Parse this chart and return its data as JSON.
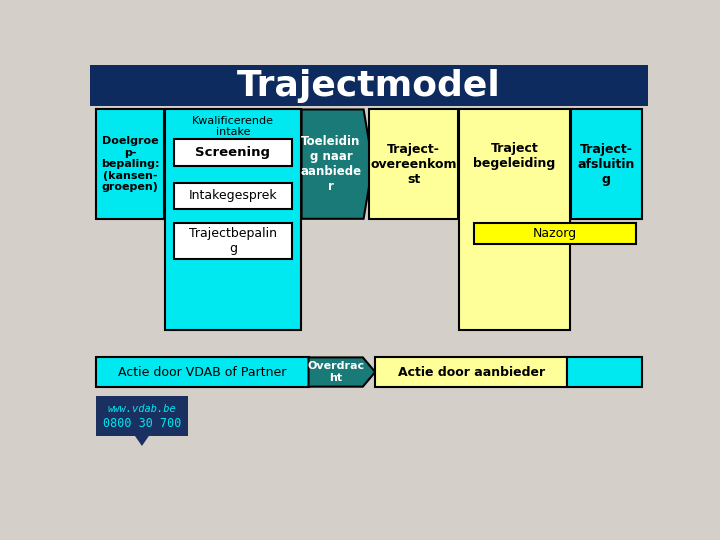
{
  "title": "Trajectmodel",
  "title_bg": "#0d2b5e",
  "bg_color": "#d4cfc8",
  "cyan": "#00e8f0",
  "teal": "#1a7a78",
  "yellow": "#ffff99",
  "bright_yellow": "#ffff00",
  "white": "#ffffff",
  "navy": "#1a3060",
  "black": "#000000",
  "title_fontsize": 26,
  "box1_label": "Doelgroe\np-\nbepaling:\n(kansen-\ngroepen)",
  "box2_label": "Kwalificerende\nintake",
  "box3_label": "Toeleidin\ng naar\naanbiede\nr",
  "box4_label": "Traject-\novereenkom\nst",
  "box5_label": "Traject\nbegeleiding",
  "box6_label": "Traject-\nafsluitin\ng",
  "nazorg_label": "Nazorg",
  "screening_label": "Screening",
  "intake_label": "Intakegesprek",
  "traj_label": "Trajectbepalin\ng",
  "bottom_left_label": "Actie door VDAB of Partner",
  "overdracht_label": "Overdrac\nht",
  "bottom_right_label": "Actie door aanbieder",
  "vdab_url": "www.vdab.be",
  "vdab_phone": "0800 30 700"
}
